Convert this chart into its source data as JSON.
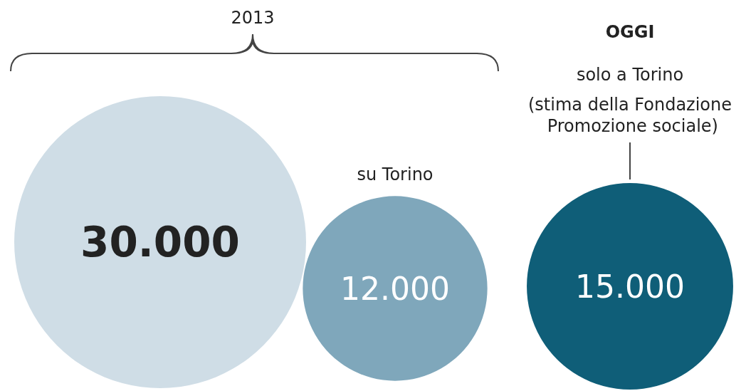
{
  "chart_data": {
    "type": "other",
    "categories": [
      null,
      "su Torino",
      "solo a Torino"
    ],
    "values": [
      30000,
      12000,
      15000
    ],
    "value_labels": [
      "30.000",
      "12.000",
      "15.000"
    ],
    "colors": [
      "#cfdde6",
      "#7fa7bb",
      "#0f5e78"
    ],
    "annotations": [
      "2013",
      "OGGI",
      "(stima della Fondazione Promozione sociale)"
    ]
  }
}
